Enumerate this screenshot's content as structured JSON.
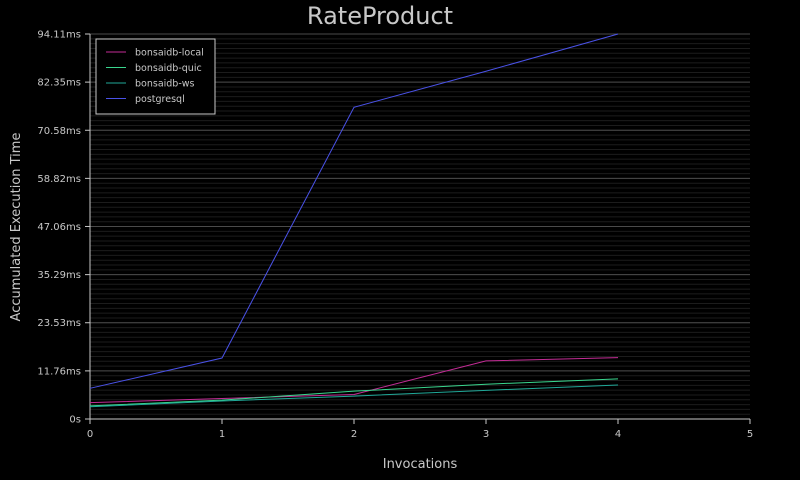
{
  "chart_data": {
    "type": "line",
    "title": "RateProduct",
    "xlabel": "Invocations",
    "ylabel": "Accumulated Execution Time",
    "xlim": [
      0,
      5
    ],
    "ylim": [
      0,
      94.11
    ],
    "x_ticks": [
      "0",
      "1",
      "2",
      "3",
      "4",
      "5"
    ],
    "y_ticks": [
      "0s",
      "11.76ms",
      "23.53ms",
      "35.29ms",
      "47.06ms",
      "58.82ms",
      "70.58ms",
      "82.35ms",
      "94.11ms"
    ],
    "y_tick_values": [
      0,
      11.76,
      23.53,
      35.29,
      47.06,
      58.82,
      70.58,
      82.35,
      94.11
    ],
    "grid": true,
    "legend_position": "top-left",
    "x": [
      0,
      1,
      2,
      3,
      4
    ],
    "series": [
      {
        "name": "bonsaidb-local",
        "color": "#c42c96",
        "values": [
          4.0,
          5.0,
          6.0,
          14.2,
          15.0
        ]
      },
      {
        "name": "bonsaidb-quic",
        "color": "#3ad68e",
        "values": [
          3.2,
          4.6,
          6.8,
          8.5,
          9.8
        ]
      },
      {
        "name": "bonsaidb-ws",
        "color": "#20a898",
        "values": [
          3.0,
          4.4,
          5.6,
          7.0,
          8.3
        ]
      },
      {
        "name": "postgresql",
        "color": "#4a52e8",
        "values": [
          7.5,
          14.9,
          76.2,
          85.0,
          94.1
        ]
      }
    ]
  }
}
